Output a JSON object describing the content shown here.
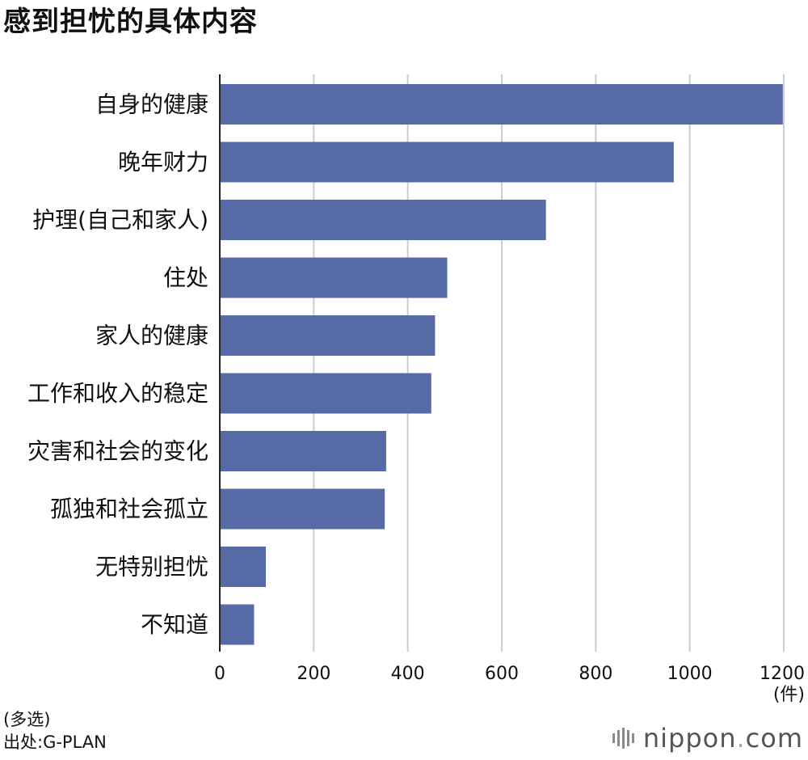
{
  "chart_data": {
    "type": "bar",
    "orientation": "horizontal",
    "title": "感到担忧的具体内容",
    "categories": [
      "自身的健康",
      "晚年财力",
      "护理(自己和家人)",
      "住处",
      "家人的健康",
      "工作和收入的稳定",
      "灾害和社会的变化",
      "孤独和社会孤立",
      "无特别担忧",
      "不知道"
    ],
    "values": [
      1198,
      966,
      694,
      484,
      458,
      450,
      354,
      351,
      98,
      73
    ],
    "xlim": [
      0,
      1200
    ],
    "xticks": [
      0,
      200,
      400,
      600,
      800,
      1000,
      1200
    ],
    "unit": "(件)",
    "grid": true,
    "bar_color": "#566ba5",
    "grid_color": "#cccccc"
  },
  "notes": {
    "multi": "(多选)",
    "source": "出处:G-PLAN"
  },
  "logo": {
    "text": "nippon",
    "dot": ".",
    "suffix": "com"
  }
}
